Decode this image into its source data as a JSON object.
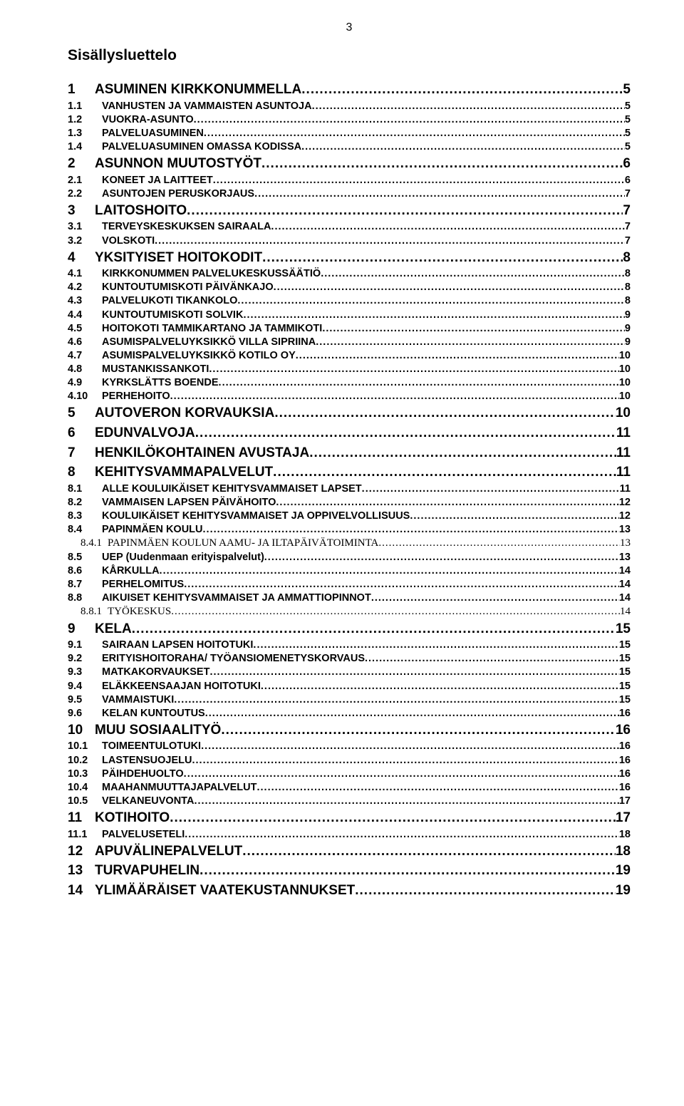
{
  "page": {
    "number": "3",
    "title": "Sisällysluettelo"
  },
  "styles": {
    "background": "#ffffff",
    "text_color": "#000000",
    "l1_fontsize": 19,
    "l2_fontsize": 14.5,
    "l3_fontsize": 15,
    "l3_font": "Times New Roman"
  },
  "toc": [
    {
      "level": 1,
      "num": "1",
      "label": "ASUMINEN KIRKKONUMMELLA",
      "page": "5"
    },
    {
      "level": 2,
      "num": "1.1",
      "label": "VANHUSTEN JA VAMMAISTEN ASUNTOJA",
      "page": "5"
    },
    {
      "level": 2,
      "num": "1.2",
      "label": "VUOKRA-ASUNTO",
      "page": "5"
    },
    {
      "level": 2,
      "num": "1.3",
      "label": "PALVELUASUMINEN",
      "page": "5"
    },
    {
      "level": 2,
      "num": "1.4",
      "label": "PALVELUASUMINEN OMASSA KODISSA",
      "page": "5"
    },
    {
      "level": 1,
      "num": "2",
      "label": "ASUNNON MUUTOSTYÖT",
      "page": "6"
    },
    {
      "level": 2,
      "num": "2.1",
      "label": "KONEET JA LAITTEET",
      "page": "6"
    },
    {
      "level": 2,
      "num": "2.2",
      "label": "ASUNTOJEN PERUSKORJAUS",
      "page": "7"
    },
    {
      "level": 1,
      "num": "3",
      "label": "LAITOSHOITO",
      "page": "7"
    },
    {
      "level": 2,
      "num": "3.1",
      "label": "TERVEYSKESKUKSEN SAIRAALA",
      "page": "7"
    },
    {
      "level": 2,
      "num": "3.2",
      "label": "VOLSKOTI",
      "page": "7"
    },
    {
      "level": 1,
      "num": "4",
      "label": "YKSITYISET HOITOKODIT",
      "page": "8"
    },
    {
      "level": 2,
      "num": "4.1",
      "label": "KIRKKONUMMEN PALVELUKESKUSSÄÄTIÖ",
      "page": "8"
    },
    {
      "level": 2,
      "num": "4.2",
      "label": "KUNTOUTUMISKOTI PÄIVÄNKAJO",
      "page": "8"
    },
    {
      "level": 2,
      "num": "4.3",
      "label": "PALVELUKOTI TIKANKOLO",
      "page": "8"
    },
    {
      "level": 2,
      "num": "4.4",
      "label": "KUNTOUTUMISKOTI SOLVIK",
      "page": "9"
    },
    {
      "level": 2,
      "num": "4.5",
      "label": "HOITOKOTI TAMMIKARTANO JA TAMMIKOTI",
      "page": "9"
    },
    {
      "level": 2,
      "num": "4.6",
      "label": "ASUMISPALVELUYKSIKKÖ VILLA SIPRIINA",
      "page": "9"
    },
    {
      "level": 2,
      "num": "4.7",
      "label": "ASUMISPALVELUYKSIKKÖ KOTILO OY",
      "page": "10"
    },
    {
      "level": 2,
      "num": "4.8",
      "label": "MUSTANKISSANKOTI",
      "page": "10"
    },
    {
      "level": 2,
      "num": "4.9",
      "label": "KYRKSLÄTTS BOENDE",
      "page": "10"
    },
    {
      "level": 2,
      "num": "4.10",
      "label": "PERHEHOITO",
      "page": "10"
    },
    {
      "level": 1,
      "num": "5",
      "label": "AUTOVERON KORVAUKSIA",
      "page": "10"
    },
    {
      "level": 1,
      "num": "6",
      "label": "EDUNVALVOJA",
      "page": "11"
    },
    {
      "level": 1,
      "num": "7",
      "label": "HENKILÖKOHTAINEN AVUSTAJA",
      "page": "11"
    },
    {
      "level": 1,
      "num": "8",
      "label": "KEHITYSVAMMAPALVELUT",
      "page": "11"
    },
    {
      "level": 2,
      "num": "8.1",
      "label": "ALLE KOULUIKÄISET KEHITYSVAMMAISET LAPSET",
      "page": "11"
    },
    {
      "level": 2,
      "num": "8.2",
      "label": "VAMMAISEN LAPSEN PÄIVÄHOITO",
      "page": "12"
    },
    {
      "level": 2,
      "num": "8.3",
      "label": "KOULUIKÄISET KEHITYSVAMMAISET JA OPPIVELVOLLISUUS",
      "page": "12"
    },
    {
      "level": 2,
      "num": "8.4",
      "label": "PAPINMÄEN KOULU",
      "page": "13"
    },
    {
      "level": 3,
      "num": "8.4.1",
      "label": "PAPINMÄEN KOULUN AAMU- JA ILTAPÄIVÄTOIMINTA",
      "page": "13"
    },
    {
      "level": 2,
      "num": "8.5",
      "label": "UEP (Uudenmaan erityispalvelut)",
      "page": "13"
    },
    {
      "level": 2,
      "num": "8.6",
      "label": "KÅRKULLA",
      "page": "14"
    },
    {
      "level": 2,
      "num": "8.7",
      "label": "PERHELOMITUS",
      "page": "14"
    },
    {
      "level": 2,
      "num": "8.8",
      "label": "AIKUISET KEHITYSVAMMAISET JA AMMATTIOPINNOT",
      "page": "14"
    },
    {
      "level": 3,
      "num": "8.8.1",
      "label": "TYÖKESKUS",
      "page": "14"
    },
    {
      "level": 1,
      "num": "9",
      "label": "KELA",
      "page": "15"
    },
    {
      "level": 2,
      "num": "9.1",
      "label": "SAIRAAN LAPSEN HOITOTUKI",
      "page": "15"
    },
    {
      "level": 2,
      "num": "9.2",
      "label": "ERITYISHOITORAHA/ TYÖANSIOMENETYSKORVAUS",
      "page": "15"
    },
    {
      "level": 2,
      "num": "9.3",
      "label": "MATKAKORVAUKSET",
      "page": "15"
    },
    {
      "level": 2,
      "num": "9.4",
      "label": "ELÄKKEENSAAJAN HOITOTUKI",
      "page": "15"
    },
    {
      "level": 2,
      "num": "9.5",
      "label": "VAMMAISTUKI",
      "page": "15"
    },
    {
      "level": 2,
      "num": "9.6",
      "label": "KELAN KUNTOUTUS",
      "page": "16"
    },
    {
      "level": 1,
      "num": "10",
      "label": "MUU SOSIAALITYÖ",
      "page": "16"
    },
    {
      "level": 2,
      "num": "10.1",
      "label": "TOIMEENTULOTUKI",
      "page": "16"
    },
    {
      "level": 2,
      "num": "10.2",
      "label": "LASTENSUOJELU",
      "page": "16"
    },
    {
      "level": 2,
      "num": "10.3",
      "label": "PÄIHDEHUOLTO",
      "page": "16"
    },
    {
      "level": 2,
      "num": "10.4",
      "label": "MAAHANMUUTTAJAPALVELUT",
      "page": "16"
    },
    {
      "level": 2,
      "num": "10.5",
      "label": "VELKANEUVONTA",
      "page": "17"
    },
    {
      "level": 1,
      "num": "11",
      "label": "KOTIHOITO",
      "page": "17"
    },
    {
      "level": 2,
      "num": "11.1",
      "label": "PALVELUSETELI",
      "page": "18"
    },
    {
      "level": 1,
      "num": "12",
      "label": "APUVÄLINEPALVELUT",
      "page": "18"
    },
    {
      "level": 1,
      "num": "13",
      "label": "TURVAPUHELIN",
      "page": "19"
    },
    {
      "level": 1,
      "num": "14",
      "label": "YLIMÄÄRÄISET VAATEKUSTANNUKSET",
      "page": "19"
    }
  ]
}
